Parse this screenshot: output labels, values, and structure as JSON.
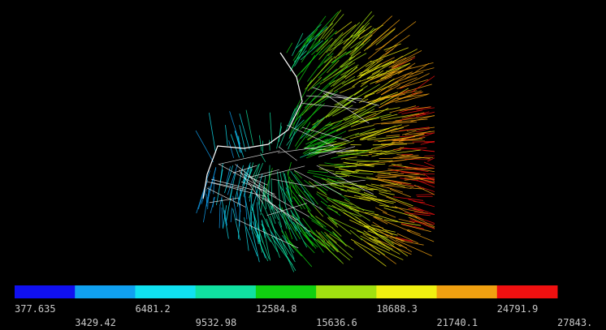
{
  "legend": {
    "colors": [
      "#1010f0",
      "#10a0f0",
      "#10e0f0",
      "#10e0a0",
      "#10d010",
      "#a0e010",
      "#f0f010",
      "#f0a010",
      "#f01010"
    ],
    "labels": [
      "377.635",
      "3429.42",
      "6481.2",
      "9532.98",
      "12584.8",
      "15636.6",
      "18688.3",
      "21740.1",
      "24791.9",
      "27843."
    ]
  }
}
